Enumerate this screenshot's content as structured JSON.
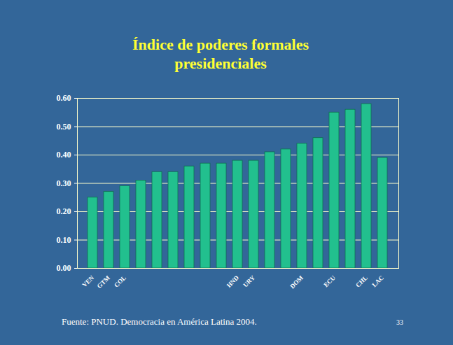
{
  "chart_data": {
    "type": "bar",
    "title": "Índice de poderes formales presidenciales",
    "categories": [
      "VEN",
      "GTM",
      "COL",
      null,
      null,
      null,
      null,
      null,
      null,
      "HND",
      "URY",
      null,
      null,
      "DOM",
      null,
      "ECU",
      null,
      "CHL",
      "LAC"
    ],
    "values": [
      0.25,
      0.27,
      0.29,
      0.31,
      0.34,
      0.34,
      0.36,
      0.37,
      0.37,
      0.38,
      0.38,
      0.41,
      0.42,
      0.44,
      0.46,
      0.55,
      0.56,
      0.58,
      0.39
    ],
    "color": "#22c08e",
    "ylim": [
      0,
      0.6
    ],
    "yticks": [
      0,
      0.1,
      0.2,
      0.3,
      0.4,
      0.5,
      0.6
    ],
    "grid": true,
    "source": "Fuente: PNUD. Democracia en América Latina 2004.",
    "page_number": "33"
  }
}
